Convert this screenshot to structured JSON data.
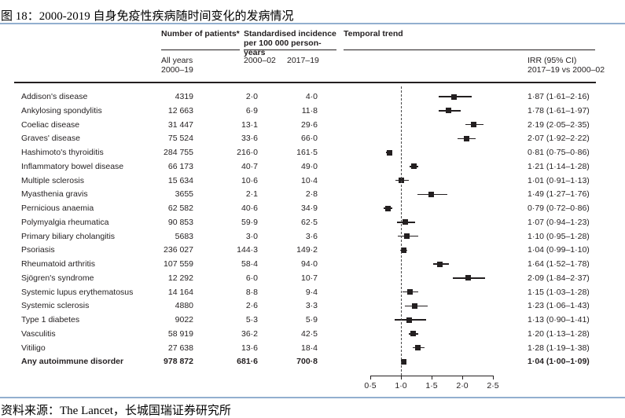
{
  "page": {
    "title": "图 18：2000-2019 自身免疫性疾病随时间变化的发病情况",
    "footer_source": "资料来源：The Lancet，长城国瑞证券研究所"
  },
  "colors": {
    "accent_line": "#92afcf",
    "ink": "#231f20",
    "marker": "#231f20"
  },
  "chart_data": {
    "type": "scatter",
    "subtype": "forest-plot",
    "headers": {
      "patients": "Number of patients*",
      "incidence": "Standardised incidence\nper 100 000 person-years",
      "temporal": "Temporal trend",
      "all_years": "All years\n2000–19",
      "period_1": "2000–02",
      "period_2": "2017–19",
      "irr": "IRR (95% CI)\n2017–19 vs 2000–02"
    },
    "x_axis": {
      "range": [
        0.5,
        2.5
      ],
      "tick_values": [
        0.5,
        1.0,
        1.5,
        2.0,
        2.5
      ],
      "tick_labels": [
        "0·5",
        "1·0",
        "1·5",
        "2·0",
        "2·5"
      ],
      "reference_line": 1.0,
      "grid": false
    },
    "legend": null,
    "rows": [
      {
        "name": "Addison's disease",
        "patients": "4319",
        "inc_2000_02": "2·0",
        "inc_2017_19": "4·0",
        "irr_label": "1·87 (1·61–2·16)",
        "irr": 1.87,
        "lo": 1.61,
        "hi": 2.16,
        "bold": false
      },
      {
        "name": "Ankylosing spondylitis",
        "patients": "12 663",
        "inc_2000_02": "6·9",
        "inc_2017_19": "11·8",
        "irr_label": "1·78 (1·61–1·97)",
        "irr": 1.78,
        "lo": 1.61,
        "hi": 1.97,
        "bold": false
      },
      {
        "name": "Coeliac disease",
        "patients": "31 447",
        "inc_2000_02": "13·1",
        "inc_2017_19": "29·6",
        "irr_label": "2·19 (2·05–2·35)",
        "irr": 2.19,
        "lo": 2.05,
        "hi": 2.35,
        "bold": false
      },
      {
        "name": "Graves' disease",
        "patients": "75 524",
        "inc_2000_02": "33·6",
        "inc_2017_19": "66·0",
        "irr_label": "2·07 (1·92–2·22)",
        "irr": 2.07,
        "lo": 1.92,
        "hi": 2.22,
        "bold": false
      },
      {
        "name": "Hashimoto's thyroiditis",
        "patients": "284 755",
        "inc_2000_02": "216·0",
        "inc_2017_19": "161·5",
        "irr_label": "0·81 (0·75–0·86)",
        "irr": 0.81,
        "lo": 0.75,
        "hi": 0.86,
        "bold": false
      },
      {
        "name": "Inflammatory bowel disease",
        "patients": "66 173",
        "inc_2000_02": "40·7",
        "inc_2017_19": "49·0",
        "irr_label": "1·21 (1·14–1·28)",
        "irr": 1.21,
        "lo": 1.14,
        "hi": 1.28,
        "bold": false
      },
      {
        "name": "Multiple sclerosis",
        "patients": "15 634",
        "inc_2000_02": "10·6",
        "inc_2017_19": "10·4",
        "irr_label": "1·01 (0·91–1·13)",
        "irr": 1.01,
        "lo": 0.91,
        "hi": 1.13,
        "bold": false
      },
      {
        "name": "Myasthenia gravis",
        "patients": "3655",
        "inc_2000_02": "2·1",
        "inc_2017_19": "2·8",
        "irr_label": "1·49 (1·27–1·76)",
        "irr": 1.49,
        "lo": 1.27,
        "hi": 1.76,
        "bold": false
      },
      {
        "name": "Pernicious anaemia",
        "patients": "62 582",
        "inc_2000_02": "40·6",
        "inc_2017_19": "34·9",
        "irr_label": "0·79 (0·72–0·86)",
        "irr": 0.79,
        "lo": 0.72,
        "hi": 0.86,
        "bold": false
      },
      {
        "name": "Polymyalgia rheumatica",
        "patients": "90 853",
        "inc_2000_02": "59·9",
        "inc_2017_19": "62·5",
        "irr_label": "1·07 (0·94–1·23)",
        "irr": 1.07,
        "lo": 0.94,
        "hi": 1.23,
        "bold": false
      },
      {
        "name": "Primary biliary cholangitis",
        "patients": "5683",
        "inc_2000_02": "3·0",
        "inc_2017_19": "3·6",
        "irr_label": "1·10 (0·95–1·28)",
        "irr": 1.1,
        "lo": 0.95,
        "hi": 1.28,
        "bold": false
      },
      {
        "name": "Psoriasis",
        "patients": "236 027",
        "inc_2000_02": "144·3",
        "inc_2017_19": "149·2",
        "irr_label": "1·04 (0·99–1·10)",
        "irr": 1.04,
        "lo": 0.99,
        "hi": 1.1,
        "bold": false
      },
      {
        "name": "Rheumatoid arthritis",
        "patients": "107 559",
        "inc_2000_02": "58·4",
        "inc_2017_19": "94·0",
        "irr_label": "1·64 (1·52–1·78)",
        "irr": 1.64,
        "lo": 1.52,
        "hi": 1.78,
        "bold": false
      },
      {
        "name": "Sjögren's syndrome",
        "patients": "12 292",
        "inc_2000_02": "6·0",
        "inc_2017_19": "10·7",
        "irr_label": "2·09 (1·84–2·37)",
        "irr": 2.09,
        "lo": 1.84,
        "hi": 2.37,
        "bold": false
      },
      {
        "name": "Systemic lupus erythematosus",
        "patients": "14 164",
        "inc_2000_02": "8·8",
        "inc_2017_19": "9·4",
        "irr_label": "1·15 (1·03–1·28)",
        "irr": 1.15,
        "lo": 1.03,
        "hi": 1.28,
        "bold": false
      },
      {
        "name": "Systemic sclerosis",
        "patients": "4880",
        "inc_2000_02": "2·6",
        "inc_2017_19": "3·3",
        "irr_label": "1·23 (1·06–1·43)",
        "irr": 1.23,
        "lo": 1.06,
        "hi": 1.43,
        "bold": false
      },
      {
        "name": "Type 1 diabetes",
        "patients": "9022",
        "inc_2000_02": "5·3",
        "inc_2017_19": "5·9",
        "irr_label": "1·13 (0·90–1·41)",
        "irr": 1.13,
        "lo": 0.9,
        "hi": 1.41,
        "bold": false
      },
      {
        "name": "Vasculitis",
        "patients": "58 919",
        "inc_2000_02": "36·2",
        "inc_2017_19": "42·5",
        "irr_label": "1·20 (1·13–1·28)",
        "irr": 1.2,
        "lo": 1.13,
        "hi": 1.28,
        "bold": false
      },
      {
        "name": "Vitiligo",
        "patients": "27 638",
        "inc_2000_02": "13·6",
        "inc_2017_19": "18·4",
        "irr_label": "1·28 (1·19–1·38)",
        "irr": 1.28,
        "lo": 1.19,
        "hi": 1.38,
        "bold": false
      },
      {
        "name": "Any autoimmune disorder",
        "patients": "978 872",
        "inc_2000_02": "681·6",
        "inc_2017_19": "700·8",
        "irr_label": "1·04 (1·00–1·09)",
        "irr": 1.04,
        "lo": 1.0,
        "hi": 1.09,
        "bold": true
      }
    ]
  }
}
